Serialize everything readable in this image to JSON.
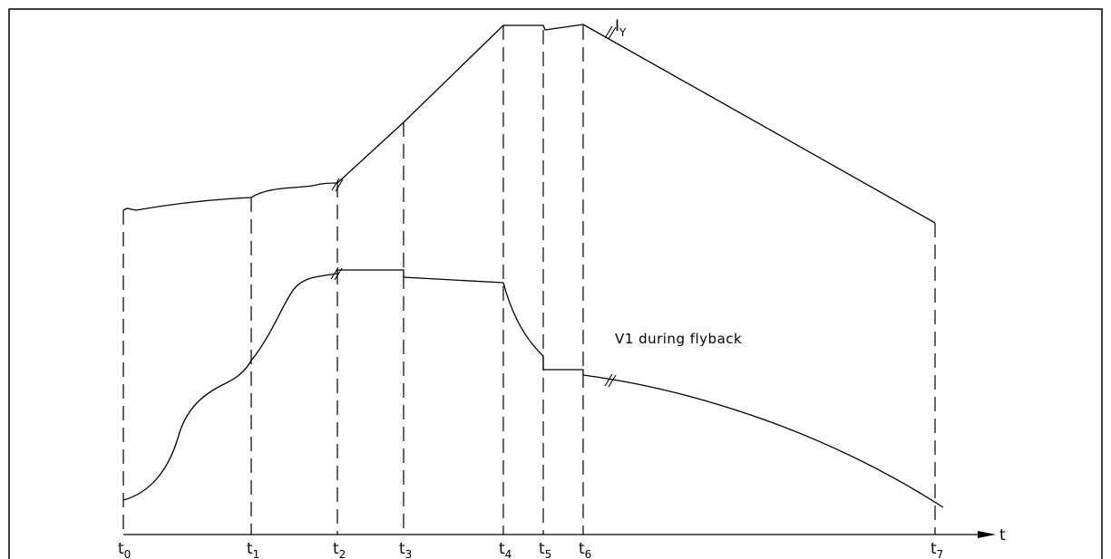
{
  "axis": {
    "label": "t",
    "ticks": [
      {
        "base": "t",
        "sub": "0"
      },
      {
        "base": "t",
        "sub": "1"
      },
      {
        "base": "t",
        "sub": "2"
      },
      {
        "base": "t",
        "sub": "3"
      },
      {
        "base": "t",
        "sub": "4"
      },
      {
        "base": "t",
        "sub": "5"
      },
      {
        "base": "t",
        "sub": "6"
      },
      {
        "base": "t",
        "sub": "7"
      }
    ]
  },
  "labels": {
    "iy_base": "I",
    "iy_sub": "Y",
    "v1": "V1  during  flyback"
  }
}
